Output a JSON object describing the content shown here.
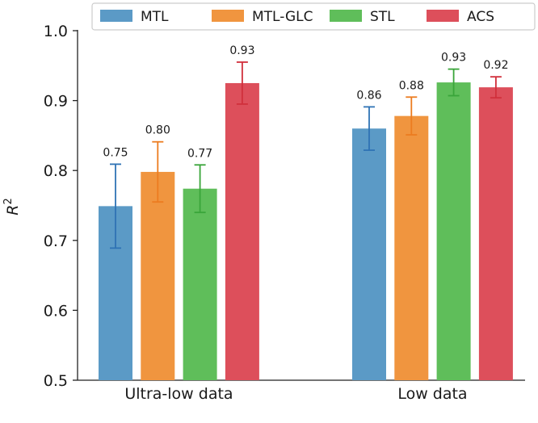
{
  "chart_data": {
    "type": "bar",
    "categories": [
      "Ultra-low data",
      "Low data"
    ],
    "ylabel": "R",
    "ylabel_superscript": "2",
    "ylim": [
      0.5,
      1.0
    ],
    "yticks": [
      0.5,
      0.6,
      0.7,
      0.8,
      0.9,
      1.0
    ],
    "ytick_labels": [
      "0.5",
      "0.6",
      "0.7",
      "0.8",
      "0.9",
      "1.0"
    ],
    "legend_position": "top",
    "series": [
      {
        "name": "MTL",
        "color": "#5b9ac6",
        "values": [
          0.749,
          0.86
        ],
        "errors": [
          0.06,
          0.031
        ],
        "labels": [
          "0.75",
          "0.86"
        ]
      },
      {
        "name": "MTL-GLC",
        "color": "#f0953f",
        "values": [
          0.798,
          0.878
        ],
        "errors": [
          0.043,
          0.027
        ],
        "labels": [
          "0.80",
          "0.88"
        ]
      },
      {
        "name": "STL",
        "color": "#5fbe5a",
        "values": [
          0.774,
          0.926
        ],
        "errors": [
          0.034,
          0.019
        ],
        "labels": [
          "0.77",
          "0.93"
        ]
      },
      {
        "name": "ACS",
        "color": "#dd4f5b",
        "values": [
          0.925,
          0.919
        ],
        "errors": [
          0.03,
          0.015
        ],
        "labels": [
          "0.93",
          "0.92"
        ]
      }
    ],
    "error_colors": [
      "#2f73b5",
      "#ec7c20",
      "#3aa53a",
      "#d1303c"
    ]
  }
}
